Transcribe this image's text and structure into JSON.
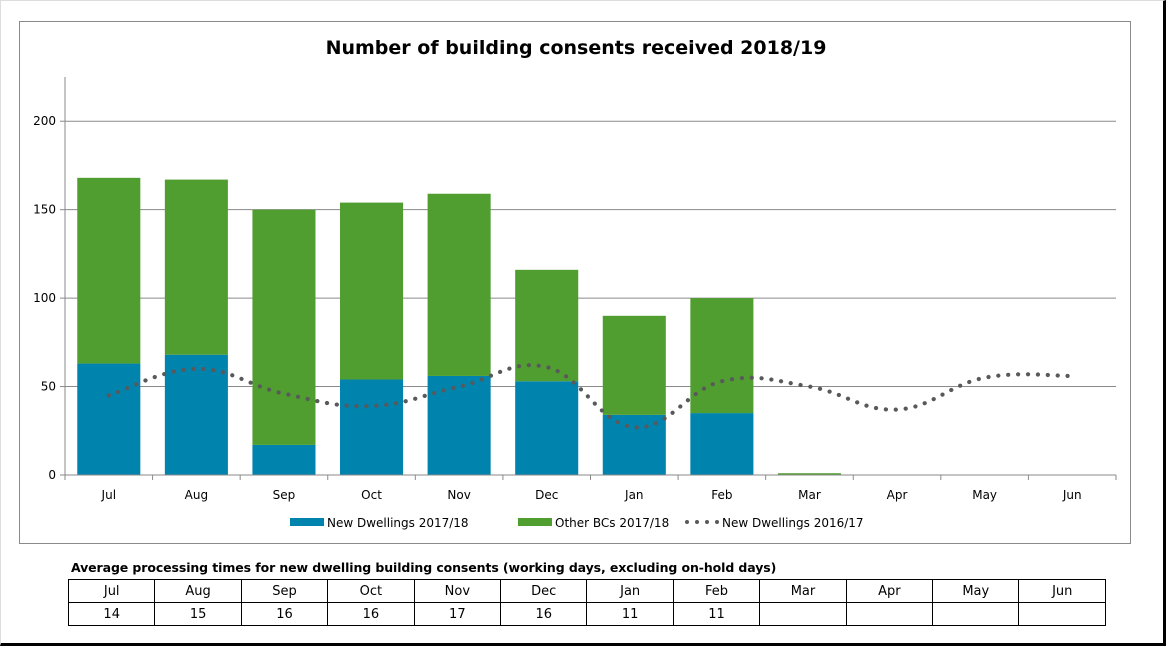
{
  "chart_data": {
    "type": "bar",
    "stacked": true,
    "title": "Number of building consents received 2018/19",
    "xlabel": "",
    "ylabel": "",
    "ylim": [
      0,
      225
    ],
    "yticks": [
      0,
      50,
      100,
      150,
      200
    ],
    "ytick_labels": [
      "0",
      "50",
      "100",
      "150",
      "200"
    ],
    "grid": true,
    "legend_position": "bottom",
    "categories": [
      "Jul",
      "Aug",
      "Sep",
      "Oct",
      "Nov",
      "Dec",
      "Jan",
      "Feb",
      "Mar",
      "Apr",
      "May",
      "Jun"
    ],
    "series": [
      {
        "name": "New Dwellings 2017/18",
        "type": "bar",
        "color": "#0083ad",
        "values": [
          63,
          68,
          17,
          54,
          56,
          53,
          34,
          35,
          0,
          null,
          null,
          null
        ]
      },
      {
        "name": "Other BCs 2017/18",
        "type": "bar",
        "color": "#519e30",
        "values": [
          105,
          99,
          133,
          100,
          103,
          63,
          56,
          65,
          1,
          null,
          null,
          null
        ]
      },
      {
        "name": "New Dwellings 2016/17",
        "type": "line",
        "style": "dotted",
        "color": "#58595b",
        "values": [
          45,
          60,
          46,
          39,
          50,
          61,
          27,
          53,
          50,
          37,
          55,
          56
        ]
      }
    ]
  },
  "processing_table": {
    "title": "Average processing times for new dwelling building consents (working days, excluding on-hold days)",
    "months": [
      "Jul",
      "Aug",
      "Sep",
      "Oct",
      "Nov",
      "Dec",
      "Jan",
      "Feb",
      "Mar",
      "Apr",
      "May",
      "Jun"
    ],
    "values": [
      "14",
      "15",
      "16",
      "16",
      "17",
      "16",
      "11",
      "11",
      "",
      "",
      "",
      ""
    ]
  }
}
